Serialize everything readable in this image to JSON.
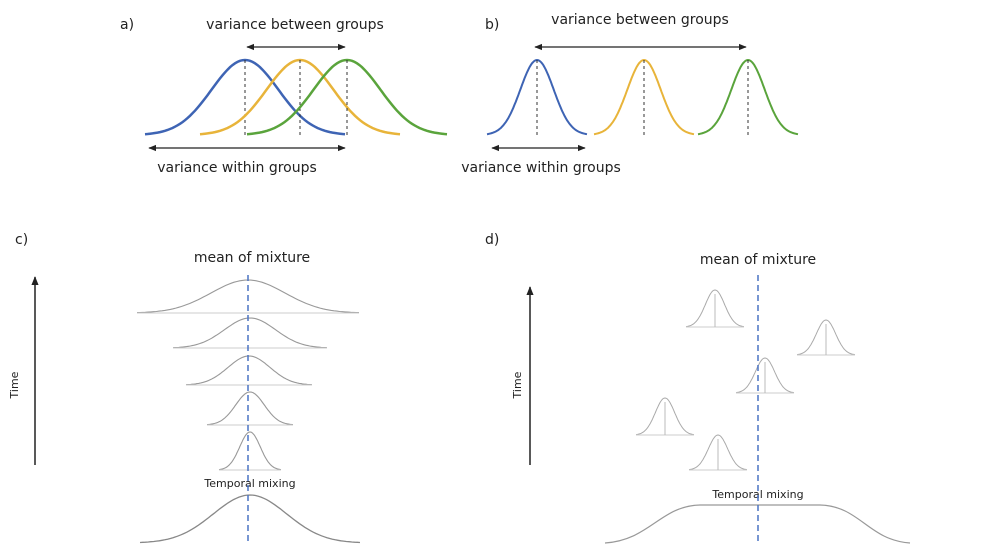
{
  "panels": [
    {
      "label": "a)",
      "between": "variance between groups",
      "within": "variance within groups"
    },
    {
      "label": "b)",
      "between": "variance between groups",
      "within": "variance within groups"
    },
    {
      "label": "c)",
      "title": "mean of mixture",
      "axis": "Time",
      "mixing": "Temporal mixing"
    },
    {
      "label": "d)",
      "title": "mean of mixture",
      "axis": "Time",
      "mixing": "Temporal mixing"
    }
  ]
}
